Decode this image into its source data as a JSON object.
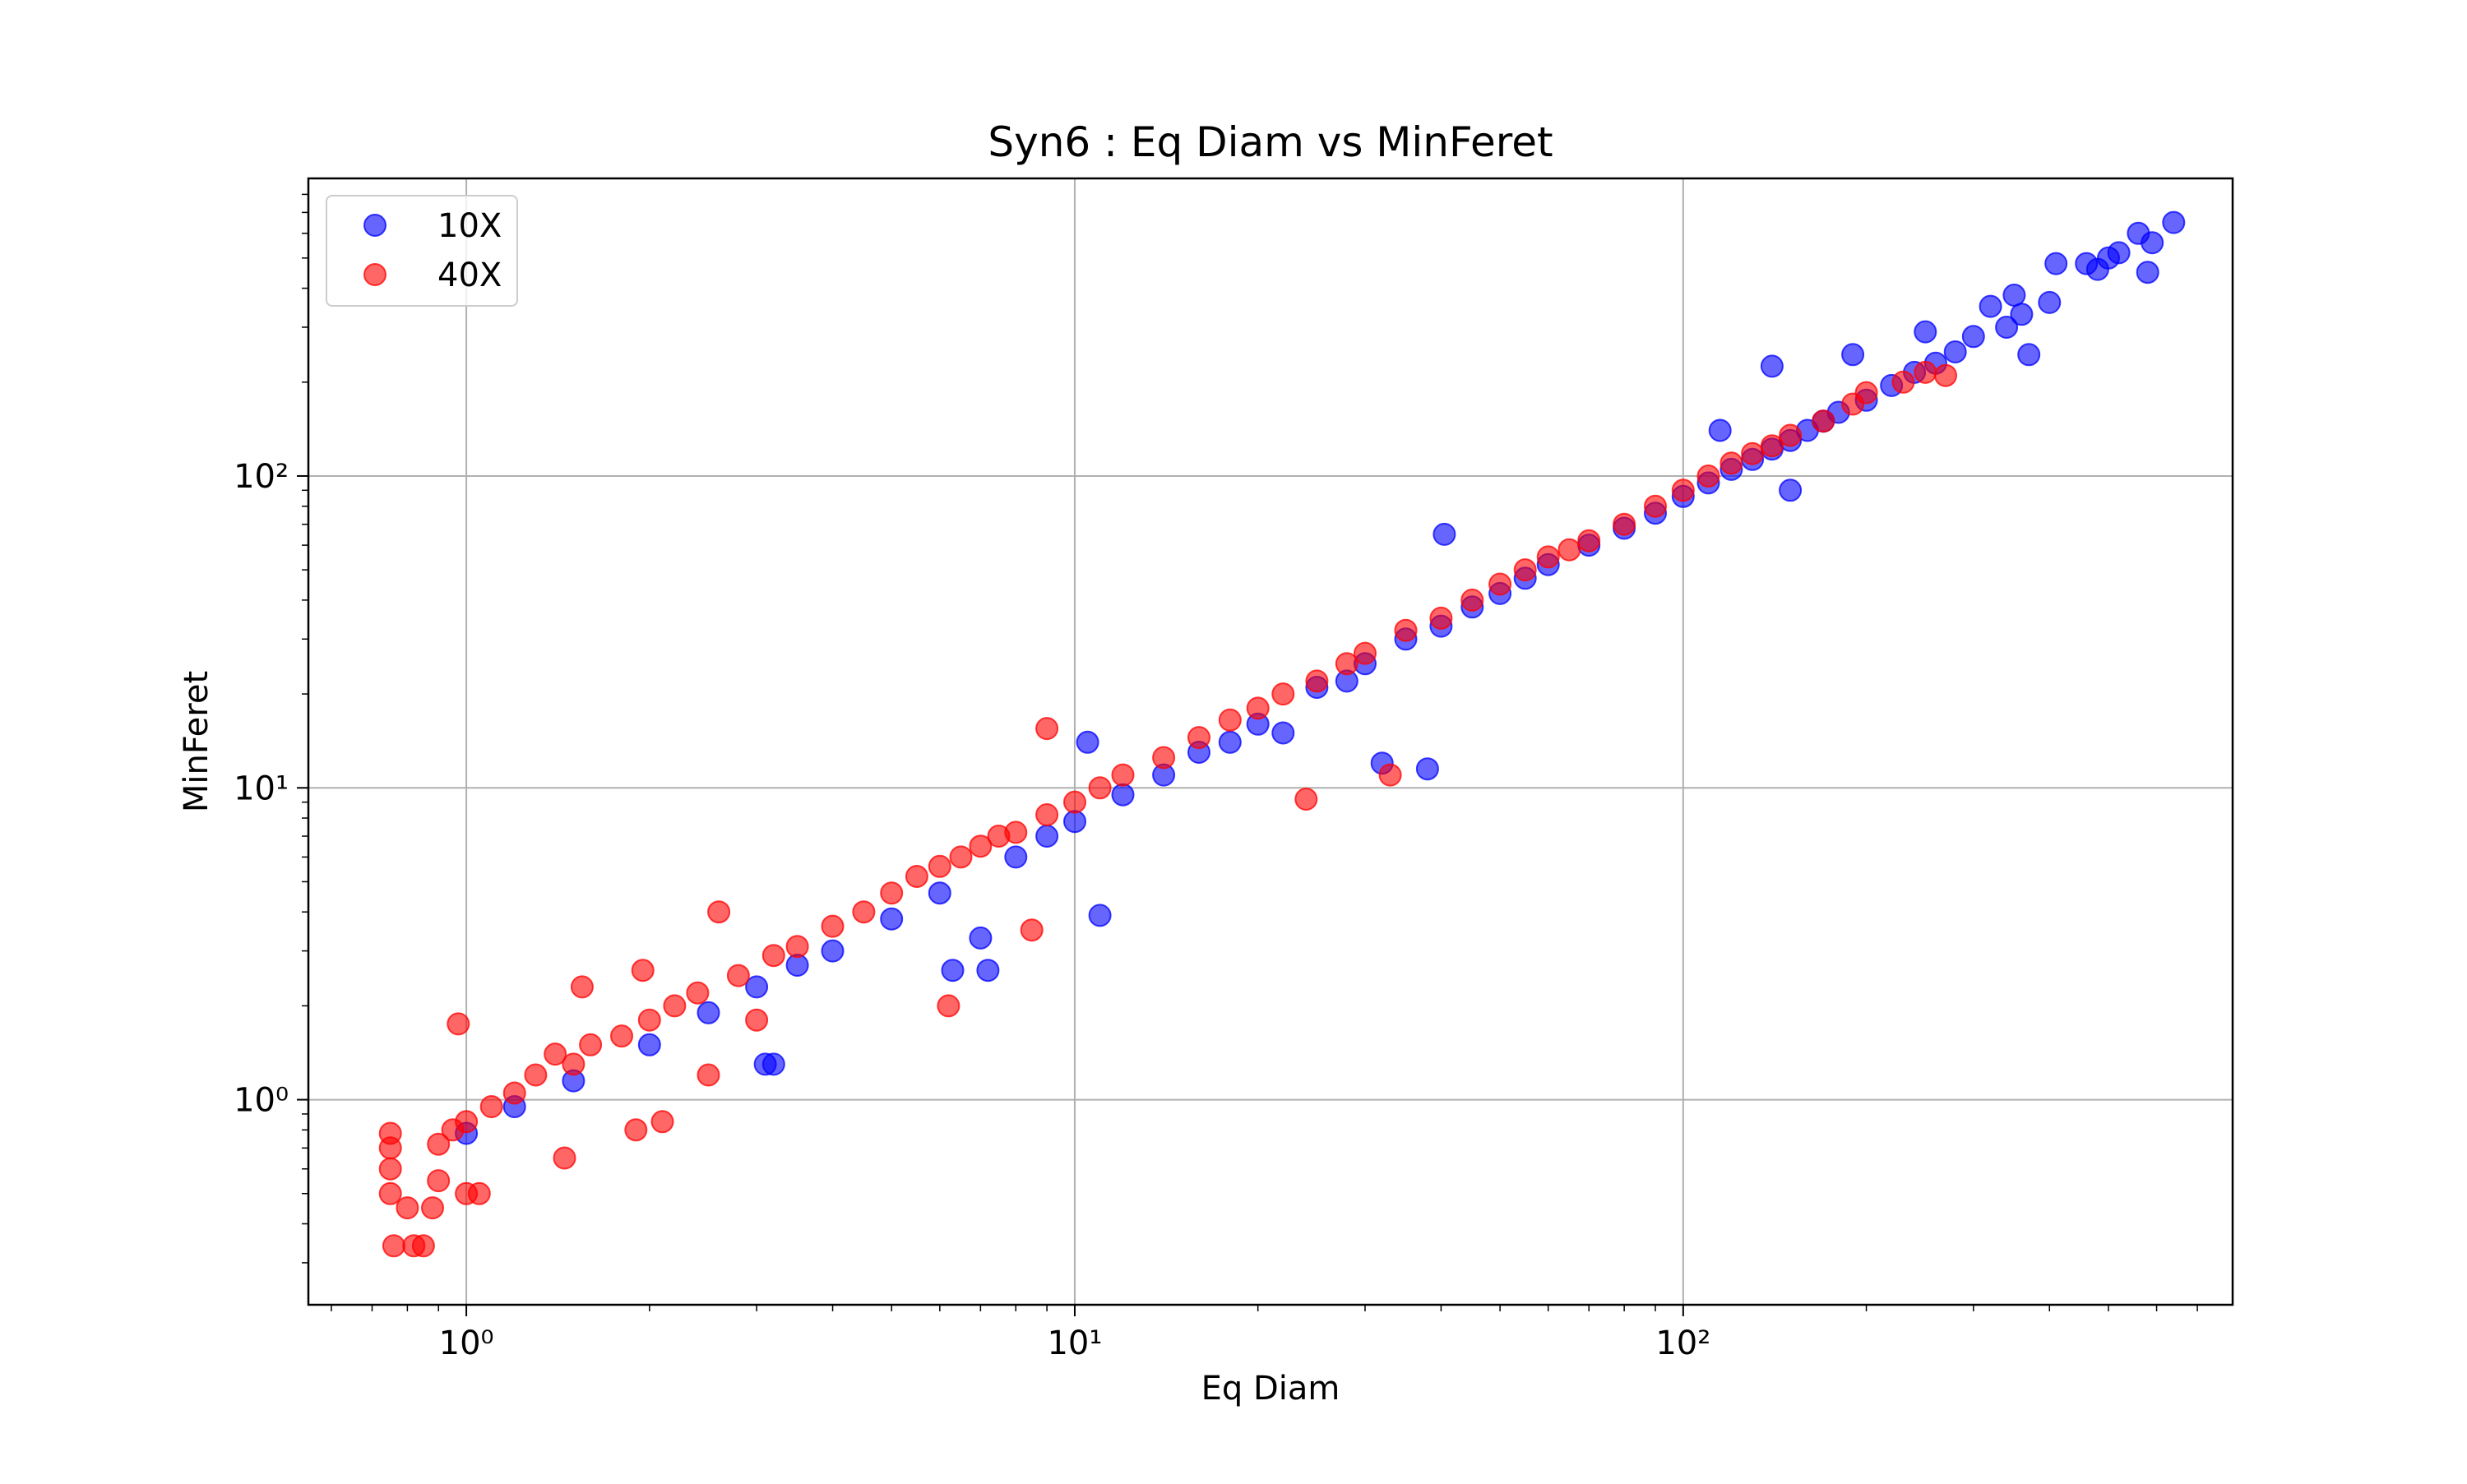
{
  "chart_data": {
    "type": "scatter",
    "title": "Syn6 : Eq Diam vs MinFeret",
    "xlabel": "Eq Diam",
    "ylabel": "MinFeret",
    "xscale": "log",
    "yscale": "log",
    "xlim": [
      0.55,
      800
    ],
    "ylim": [
      0.22,
      900
    ],
    "grid": true,
    "legend_position": "top-left",
    "x_ticks": [
      {
        "value": 1,
        "label": "10⁰"
      },
      {
        "value": 10,
        "label": "10¹"
      },
      {
        "value": 100,
        "label": "10²"
      }
    ],
    "y_ticks": [
      {
        "value": 1,
        "label": "10⁰"
      },
      {
        "value": 10,
        "label": "10¹"
      },
      {
        "value": 100,
        "label": "10²"
      }
    ],
    "series": [
      {
        "name": "10X",
        "color": "#0000ff",
        "points": [
          [
            1.0,
            0.78
          ],
          [
            1.2,
            0.95
          ],
          [
            1.5,
            1.15
          ],
          [
            2.0,
            1.5
          ],
          [
            2.5,
            1.9
          ],
          [
            3.0,
            2.3
          ],
          [
            3.1,
            1.3
          ],
          [
            3.2,
            1.3
          ],
          [
            3.5,
            2.7
          ],
          [
            4.0,
            3.0
          ],
          [
            5.0,
            3.8
          ],
          [
            6.0,
            4.6
          ],
          [
            6.3,
            2.6
          ],
          [
            7.0,
            3.3
          ],
          [
            7.2,
            2.6
          ],
          [
            8.0,
            6.0
          ],
          [
            9.0,
            7.0
          ],
          [
            10.0,
            7.8
          ],
          [
            10.5,
            14.0
          ],
          [
            11.0,
            3.9
          ],
          [
            12.0,
            9.5
          ],
          [
            14.0,
            11.0
          ],
          [
            16.0,
            13.0
          ],
          [
            18.0,
            14.0
          ],
          [
            20.0,
            16.0
          ],
          [
            22.0,
            15.0
          ],
          [
            25.0,
            21.0
          ],
          [
            28.0,
            22.0
          ],
          [
            30.0,
            25.0
          ],
          [
            32.0,
            12.0
          ],
          [
            35.0,
            30.0
          ],
          [
            38.0,
            11.5
          ],
          [
            40.0,
            33.0
          ],
          [
            40.5,
            65.0
          ],
          [
            45.0,
            38.0
          ],
          [
            50.0,
            42.0
          ],
          [
            55.0,
            47.0
          ],
          [
            60.0,
            52.0
          ],
          [
            70.0,
            60.0
          ],
          [
            80.0,
            68.0
          ],
          [
            90.0,
            76.0
          ],
          [
            100.0,
            86.0
          ],
          [
            110.0,
            95.0
          ],
          [
            115.0,
            140.0
          ],
          [
            120.0,
            105.0
          ],
          [
            130.0,
            113.0
          ],
          [
            140.0,
            122.0
          ],
          [
            140.0,
            225.0
          ],
          [
            150.0,
            90.0
          ],
          [
            150.0,
            130.0
          ],
          [
            160.0,
            140.0
          ],
          [
            170.0,
            150.0
          ],
          [
            180.0,
            160.0
          ],
          [
            190.0,
            245.0
          ],
          [
            200.0,
            175.0
          ],
          [
            220.0,
            195.0
          ],
          [
            240.0,
            215.0
          ],
          [
            250.0,
            290.0
          ],
          [
            260.0,
            230.0
          ],
          [
            280.0,
            250.0
          ],
          [
            300.0,
            280.0
          ],
          [
            320.0,
            350.0
          ],
          [
            340.0,
            300.0
          ],
          [
            350.0,
            380.0
          ],
          [
            360.0,
            330.0
          ],
          [
            370.0,
            245.0
          ],
          [
            400.0,
            360.0
          ],
          [
            410.0,
            480.0
          ],
          [
            460.0,
            480.0
          ],
          [
            480.0,
            460.0
          ],
          [
            500.0,
            500.0
          ],
          [
            520.0,
            520.0
          ],
          [
            560.0,
            600.0
          ],
          [
            580.0,
            450.0
          ],
          [
            590.0,
            560.0
          ],
          [
            640.0,
            650.0
          ]
        ]
      },
      {
        "name": "40X",
        "color": "#ff0000",
        "points": [
          [
            0.75,
            0.5
          ],
          [
            0.75,
            0.6
          ],
          [
            0.75,
            0.7
          ],
          [
            0.75,
            0.78
          ],
          [
            0.76,
            0.34
          ],
          [
            0.8,
            0.45
          ],
          [
            0.82,
            0.34
          ],
          [
            0.85,
            0.34
          ],
          [
            0.88,
            0.45
          ],
          [
            0.9,
            0.55
          ],
          [
            0.9,
            0.72
          ],
          [
            0.95,
            0.8
          ],
          [
            0.97,
            1.75
          ],
          [
            1.0,
            0.5
          ],
          [
            1.0,
            0.85
          ],
          [
            1.05,
            0.5
          ],
          [
            1.1,
            0.95
          ],
          [
            1.2,
            1.05
          ],
          [
            1.3,
            1.2
          ],
          [
            1.4,
            1.4
          ],
          [
            1.45,
            0.65
          ],
          [
            1.5,
            1.3
          ],
          [
            1.55,
            2.3
          ],
          [
            1.6,
            1.5
          ],
          [
            1.8,
            1.6
          ],
          [
            1.9,
            0.8
          ],
          [
            1.95,
            2.6
          ],
          [
            2.0,
            1.8
          ],
          [
            2.1,
            0.85
          ],
          [
            2.2,
            2.0
          ],
          [
            2.4,
            2.2
          ],
          [
            2.5,
            1.2
          ],
          [
            2.6,
            4.0
          ],
          [
            2.8,
            2.5
          ],
          [
            3.0,
            1.8
          ],
          [
            3.2,
            2.9
          ],
          [
            3.5,
            3.1
          ],
          [
            4.0,
            3.6
          ],
          [
            4.5,
            4.0
          ],
          [
            5.0,
            4.6
          ],
          [
            5.5,
            5.2
          ],
          [
            6.0,
            5.6
          ],
          [
            6.2,
            2.0
          ],
          [
            6.5,
            6.0
          ],
          [
            7.0,
            6.5
          ],
          [
            7.5,
            7.0
          ],
          [
            8.0,
            7.2
          ],
          [
            8.5,
            3.5
          ],
          [
            9.0,
            15.5
          ],
          [
            9.0,
            8.2
          ],
          [
            10.0,
            9.0
          ],
          [
            11.0,
            10.0
          ],
          [
            12.0,
            11.0
          ],
          [
            14.0,
            12.5
          ],
          [
            16.0,
            14.5
          ],
          [
            18.0,
            16.5
          ],
          [
            20.0,
            18.0
          ],
          [
            22.0,
            20.0
          ],
          [
            24.0,
            9.2
          ],
          [
            25.0,
            22.0
          ],
          [
            28.0,
            25.0
          ],
          [
            30.0,
            27.0
          ],
          [
            33.0,
            11.0
          ],
          [
            35.0,
            32.0
          ],
          [
            40.0,
            35.0
          ],
          [
            45.0,
            40.0
          ],
          [
            50.0,
            45.0
          ],
          [
            55.0,
            50.0
          ],
          [
            60.0,
            55.0
          ],
          [
            65.0,
            58.0
          ],
          [
            70.0,
            62.0
          ],
          [
            80.0,
            70.0
          ],
          [
            90.0,
            80.0
          ],
          [
            100.0,
            90.0
          ],
          [
            110.0,
            100.0
          ],
          [
            120.0,
            110.0
          ],
          [
            130.0,
            118.0
          ],
          [
            140.0,
            125.0
          ],
          [
            150.0,
            135.0
          ],
          [
            170.0,
            150.0
          ],
          [
            190.0,
            170.0
          ],
          [
            200.0,
            185.0
          ],
          [
            230.0,
            200.0
          ],
          [
            250.0,
            215.0
          ],
          [
            270.0,
            210.0
          ]
        ]
      }
    ]
  }
}
